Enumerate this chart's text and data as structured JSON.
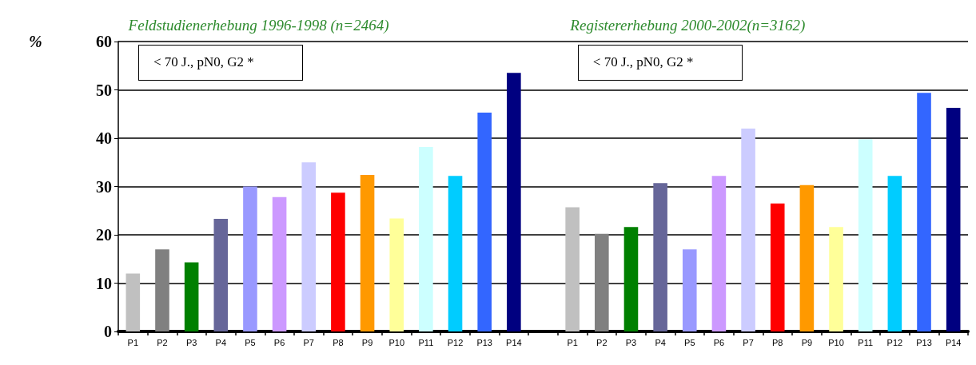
{
  "chart_data": {
    "type": "bar",
    "ylabel": "%",
    "categories": [
      "P1",
      "P2",
      "P3",
      "P4",
      "P5",
      "P6",
      "P7",
      "P8",
      "P9",
      "P10",
      "P11",
      "P12",
      "P13",
      "P14",
      null,
      "P1",
      "P2",
      "P3",
      "P4",
      "P5",
      "P6",
      "P7",
      "P8",
      "P9",
      "P10",
      "P11",
      "P12",
      "P13",
      "P14"
    ],
    "values": [
      12,
      17,
      14.3,
      23.3,
      30,
      27.8,
      35,
      28.7,
      32.4,
      23.4,
      38.2,
      32.2,
      45.3,
      53.5,
      0,
      25.7,
      20.2,
      21.6,
      30.7,
      17,
      32.2,
      42,
      26.5,
      30.3,
      21.6,
      39.8,
      32.2,
      49.4,
      46.3
    ],
    "colors": [
      "#c0c0c0",
      "#808080",
      "#008000",
      "#666699",
      "#9999ff",
      "#cc99ff",
      "#ccccff",
      "#ff0000",
      "#ff9900",
      "#ffff99",
      "#ccffff",
      "#00ccff",
      "#3366ff",
      "#000080",
      "#808080",
      "#c0c0c0",
      "#808080",
      "#008000",
      "#666699",
      "#9999ff",
      "#cc99ff",
      "#ccccff",
      "#ff0000",
      "#ff9900",
      "#ffff99",
      "#ccffff",
      "#00ccff",
      "#3366ff",
      "#000080"
    ],
    "ylim": [
      0,
      60
    ],
    "yticks": [
      0,
      10,
      20,
      30,
      40,
      50,
      60
    ],
    "grid": "y",
    "annotations": [
      "Feldstudienerhebung 1996-1998 (n=2464)",
      "Registererhebung 2000-2002(n=3162)",
      "< 70 J., pN0, G2 *",
      "< 70 J., pN0, G2 *"
    ]
  }
}
